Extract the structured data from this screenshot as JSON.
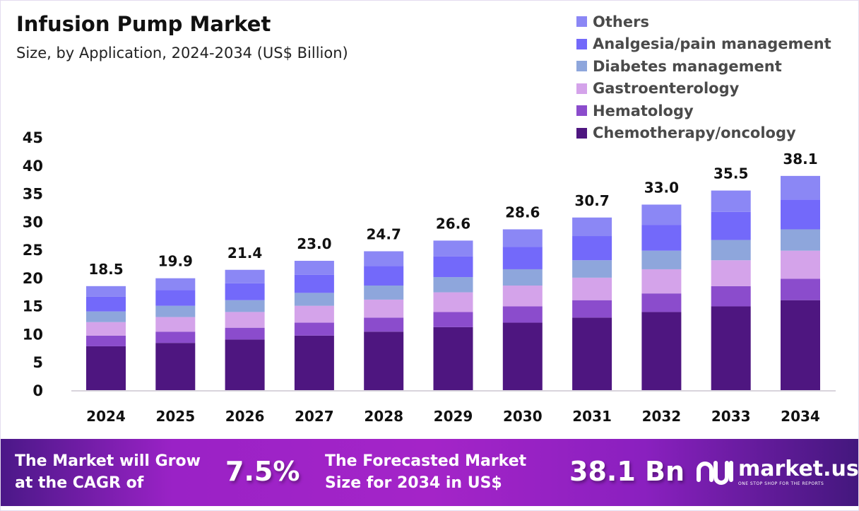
{
  "header": {
    "title": "Infusion Pump Market",
    "subtitle": "Size, by Application, 2024-2034 (US$ Billion)"
  },
  "chart_data": {
    "type": "bar",
    "stacked": true,
    "title": "Infusion Pump Market",
    "subtitle": "Size, by Application, 2024-2034 (US$ Billion)",
    "categories": [
      "2024",
      "2025",
      "2026",
      "2027",
      "2028",
      "2029",
      "2030",
      "2031",
      "2032",
      "2033",
      "2034"
    ],
    "totals": [
      "18.5",
      "19.9",
      "21.4",
      "23.0",
      "24.7",
      "26.6",
      "28.6",
      "30.7",
      "33.0",
      "35.5",
      "38.1"
    ],
    "series": [
      {
        "name": "Chemotherapy/oncology",
        "color": "#4e1680",
        "values": [
          7.8,
          8.4,
          9.0,
          9.7,
          10.4,
          11.2,
          12.0,
          12.9,
          13.9,
          14.9,
          16.0
        ]
      },
      {
        "name": "Hematology",
        "color": "#8b4ccc",
        "values": [
          1.9,
          2.0,
          2.1,
          2.3,
          2.5,
          2.7,
          2.9,
          3.1,
          3.3,
          3.6,
          3.8
        ]
      },
      {
        "name": "Gastroenterology",
        "color": "#d4a3ea",
        "values": [
          2.4,
          2.6,
          2.8,
          3.0,
          3.2,
          3.5,
          3.7,
          4.0,
          4.3,
          4.6,
          5.0
        ]
      },
      {
        "name": "Diabetes management",
        "color": "#8ea6dc",
        "values": [
          1.9,
          2.0,
          2.1,
          2.3,
          2.5,
          2.7,
          2.9,
          3.1,
          3.3,
          3.6,
          3.8
        ]
      },
      {
        "name": "Analgesia/pain management",
        "color": "#7369fa",
        "values": [
          2.6,
          2.8,
          3.0,
          3.2,
          3.5,
          3.7,
          4.0,
          4.3,
          4.6,
          5.0,
          5.3
        ]
      },
      {
        "name": "Others",
        "color": "#8b87f5",
        "values": [
          1.9,
          2.1,
          2.4,
          2.5,
          2.6,
          2.8,
          3.1,
          3.3,
          3.6,
          3.8,
          4.2
        ]
      }
    ],
    "yticks": [
      "0",
      "5",
      "10",
      "15",
      "20",
      "25",
      "30",
      "35",
      "40",
      "45"
    ],
    "ylim": [
      0,
      45
    ],
    "grid": false,
    "legend": "top-right",
    "xlabel": "",
    "ylabel": ""
  },
  "banner": {
    "cagr_label_1": "The Market will Grow",
    "cagr_label_2": "at the CAGR of",
    "cagr_value": "7.5%",
    "forecast_label_1": "The Forecasted Market",
    "forecast_label_2": "Size for 2034 in US$",
    "forecast_value": "38.1 Bn",
    "logo_name": "market.us",
    "logo_tagline": "ONE STOP SHOP FOR THE REPORTS"
  }
}
